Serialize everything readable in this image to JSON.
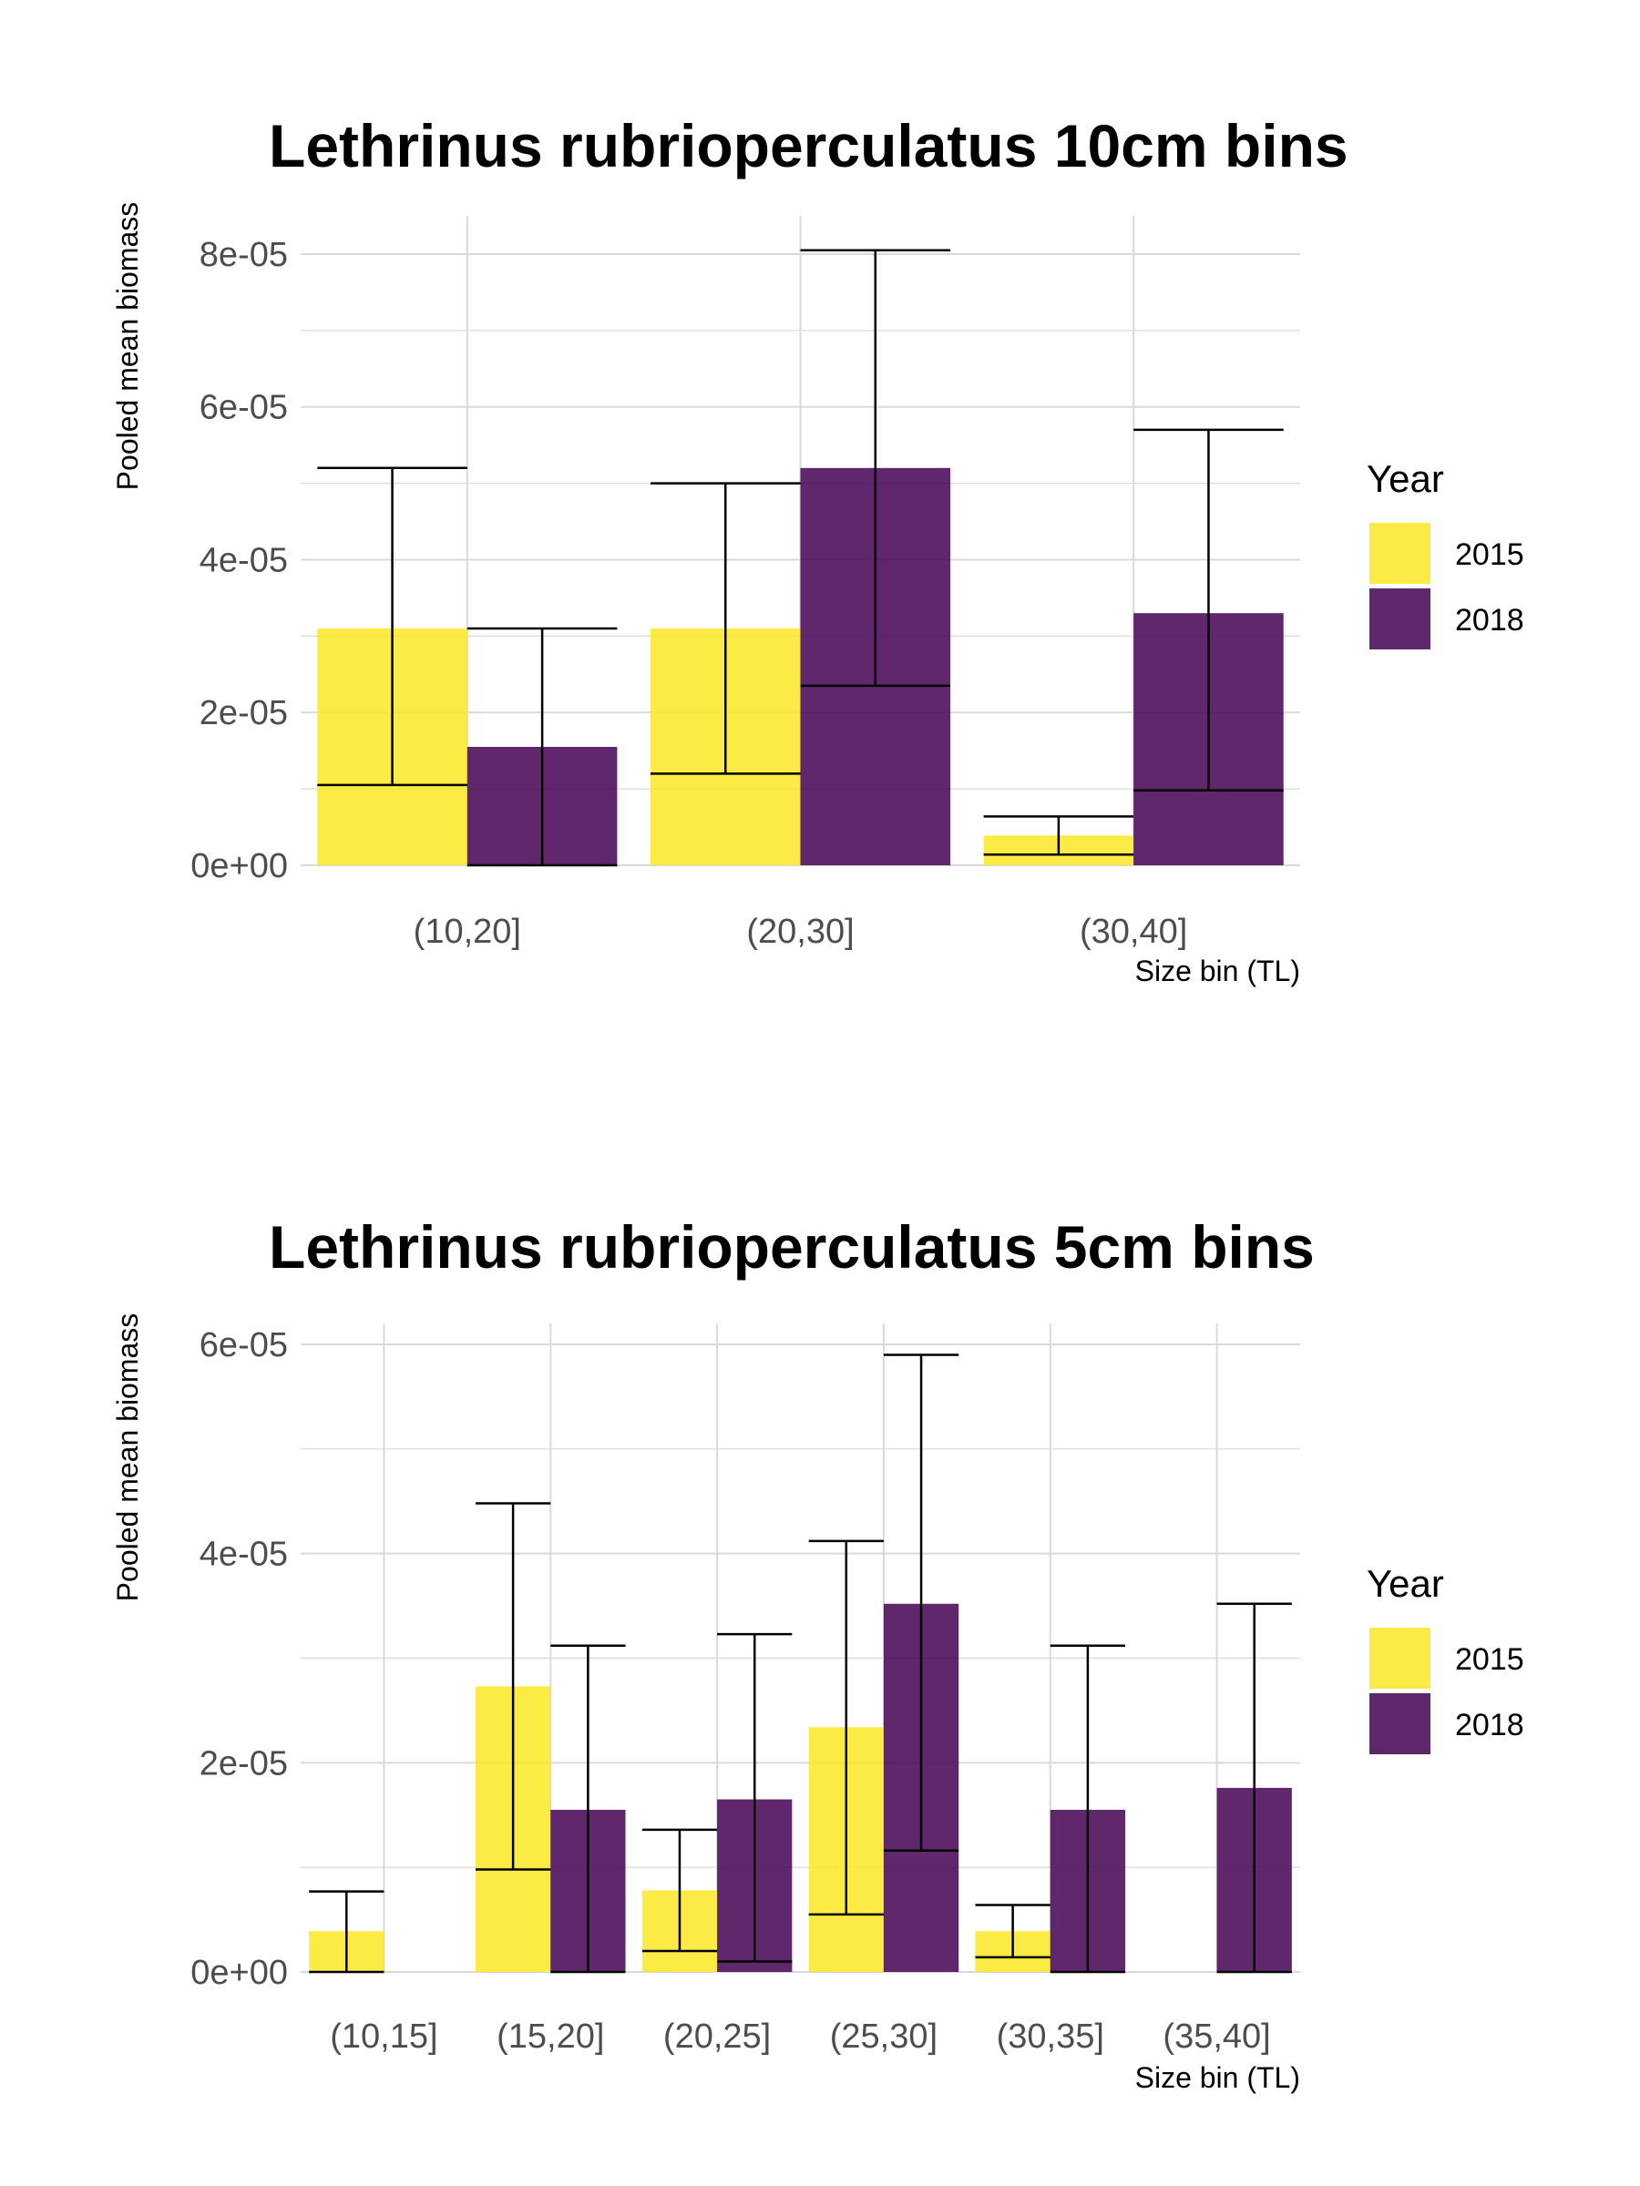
{
  "colors": {
    "2015": "#FDE725",
    "2018": "#440154",
    "grid": "#D9D9D9",
    "errorbar": "#000000"
  },
  "legend": {
    "title": "Year",
    "entries": [
      "2015",
      "2018"
    ]
  },
  "chart_data": [
    {
      "type": "bar",
      "title": "Lethrinus rubrioperculatus 10cm bins",
      "xlabel": "Size bin (TL)",
      "ylabel": "Pooled mean biomass",
      "categories": [
        "(10,20]",
        "(20,30]",
        "(30,40]"
      ],
      "ylim": [
        0,
        8.5e-05
      ],
      "yticks": [
        0,
        2e-05,
        4e-05,
        6e-05,
        8e-05
      ],
      "ytick_labels": [
        "0e+00",
        "2e-05",
        "4e-05",
        "6e-05",
        "8e-05"
      ],
      "grid": true,
      "legend_position": "right",
      "series": [
        {
          "name": "2015",
          "values": [
            3.1e-05,
            3.1e-05,
            3.9e-06
          ],
          "error_low": [
            1.05e-05,
            1.2e-05,
            1.4e-06
          ],
          "error_high": [
            5.2e-05,
            5e-05,
            6.4e-06
          ]
        },
        {
          "name": "2018",
          "values": [
            1.55e-05,
            5.2e-05,
            3.3e-05
          ],
          "error_low": [
            0,
            2.35e-05,
            9.8e-06
          ],
          "error_high": [
            3.1e-05,
            8.05e-05,
            5.7e-05
          ]
        }
      ]
    },
    {
      "type": "bar",
      "title": "Lethrinus rubrioperculatus 5cm bins",
      "xlabel": "Size bin (TL)",
      "ylabel": "Pooled mean biomass",
      "categories": [
        "(10,15]",
        "(15,20]",
        "(20,25]",
        "(25,30]",
        "(30,35]",
        "(35,40]"
      ],
      "ylim": [
        0,
        6.2e-05
      ],
      "yticks": [
        0,
        2e-05,
        4e-05,
        6e-05
      ],
      "ytick_labels": [
        "0e+00",
        "2e-05",
        "4e-05",
        "6e-05"
      ],
      "grid": true,
      "legend_position": "right",
      "series": [
        {
          "name": "2015",
          "values": [
            3.9e-06,
            2.73e-05,
            7.8e-06,
            2.34e-05,
            3.9e-06,
            null
          ],
          "error_low": [
            0,
            9.8e-06,
            2e-06,
            5.5e-06,
            1.4e-06,
            null
          ],
          "error_high": [
            7.7e-06,
            4.48e-05,
            1.36e-05,
            4.12e-05,
            6.4e-06,
            null
          ]
        },
        {
          "name": "2018",
          "values": [
            null,
            1.55e-05,
            1.65e-05,
            3.52e-05,
            1.55e-05,
            1.76e-05
          ],
          "error_low": [
            null,
            0,
            1e-06,
            1.16e-05,
            0,
            0
          ],
          "error_high": [
            null,
            3.12e-05,
            3.23e-05,
            5.9e-05,
            3.12e-05,
            3.52e-05
          ]
        }
      ]
    }
  ]
}
